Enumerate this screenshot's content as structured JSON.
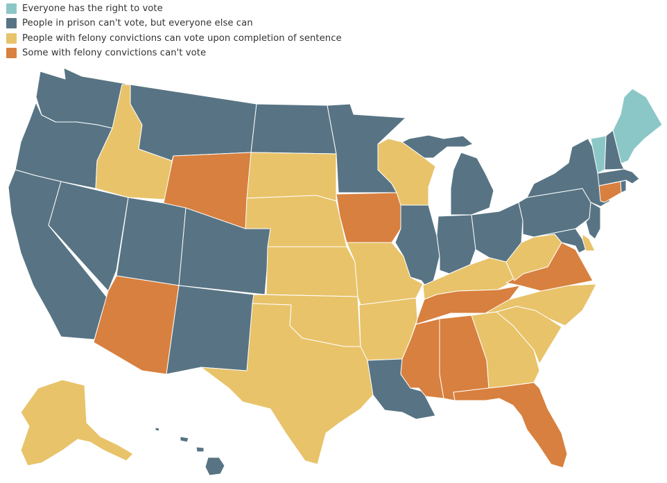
{
  "legend": {
    "items": [
      {
        "label": "Everyone has the right to vote",
        "color": "#8cc7c7"
      },
      {
        "label": "People in prison can't vote, but everyone else can",
        "color": "#587484"
      },
      {
        "label": "People with felony convictions can vote upon completion of sentence",
        "color": "#e8c36a"
      },
      {
        "label": "Some with felony convictions can't vote",
        "color": "#d8803f"
      }
    ]
  },
  "categories": {
    "all": [
      "ME",
      "VT"
    ],
    "prison": [
      "WA",
      "OR",
      "CA",
      "NV",
      "UT",
      "CO",
      "NM",
      "MT",
      "ND",
      "MN",
      "MI",
      "IL",
      "IN",
      "OH",
      "PA",
      "NY",
      "NH",
      "MA",
      "RI",
      "NJ",
      "MD",
      "LA",
      "HI"
    ],
    "sentence": [
      "ID",
      "SD",
      "NE",
      "KS",
      "OK",
      "TX",
      "MO",
      "AR",
      "WI",
      "KY",
      "WV",
      "NC",
      "SC",
      "GA",
      "AK",
      "DE"
    ],
    "some": [
      "WY",
      "AZ",
      "IA",
      "TN",
      "MS",
      "AL",
      "FL",
      "VA",
      "CT"
    ]
  }
}
